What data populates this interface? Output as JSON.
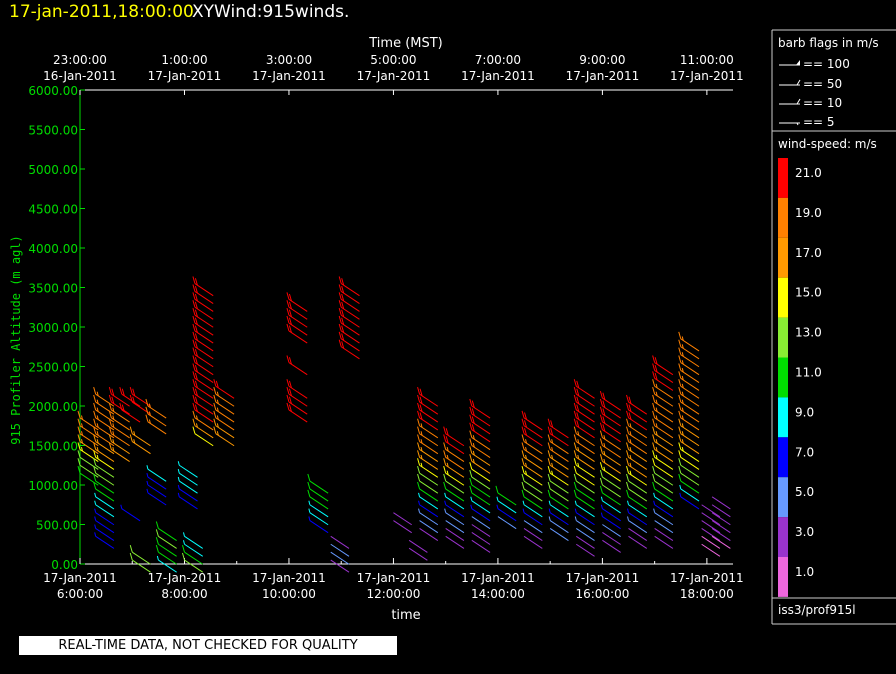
{
  "header": {
    "date_time": "17-jan-2011,18:00:00",
    "product": "XYWind:915winds."
  },
  "disclaimer": "REAL-TIME DATA, NOT CHECKED FOR QUALITY",
  "chart_data": {
    "type": "wind-barb time-height plot",
    "ylabel": "915 Profiler Altitude (m agl)",
    "xlabel": "time",
    "top_axis_title": "Time (MST)",
    "ylim": [
      0,
      6000
    ],
    "y_ticks": [
      "0.00",
      "500.00",
      "1000.00",
      "1500.00",
      "2000.00",
      "2500.00",
      "3000.00",
      "3500.00",
      "4000.00",
      "4500.00",
      "5000.00",
      "5500.00",
      "6000.00"
    ],
    "y_tick_values": [
      0,
      500,
      1000,
      1500,
      2000,
      2500,
      3000,
      3500,
      4000,
      4500,
      5000,
      5500,
      6000
    ],
    "x_range_hours": [
      6,
      18.5
    ],
    "bottom_ticks": [
      {
        "hour": 6,
        "date": "17-Jan-2011",
        "time": "6:00:00"
      },
      {
        "hour": 8,
        "date": "17-Jan-2011",
        "time": "8:00:00"
      },
      {
        "hour": 10,
        "date": "17-Jan-2011",
        "time": "10:00:00"
      },
      {
        "hour": 12,
        "date": "17-Jan-2011",
        "time": "12:00:00"
      },
      {
        "hour": 14,
        "date": "17-Jan-2011",
        "time": "14:00:00"
      },
      {
        "hour": 16,
        "date": "17-Jan-2011",
        "time": "16:00:00"
      },
      {
        "hour": 18,
        "date": "17-Jan-2011",
        "time": "18:00:00"
      }
    ],
    "top_ticks": [
      {
        "hour": 6,
        "time": "23:00:00",
        "date": "16-Jan-2011"
      },
      {
        "hour": 8,
        "time": "1:00:00",
        "date": "17-Jan-2011"
      },
      {
        "hour": 10,
        "time": "3:00:00",
        "date": "17-Jan-2011"
      },
      {
        "hour": 12,
        "time": "5:00:00",
        "date": "17-Jan-2011"
      },
      {
        "hour": 14,
        "time": "7:00:00",
        "date": "17-Jan-2011"
      },
      {
        "hour": 16,
        "time": "9:00:00",
        "date": "17-Jan-2011"
      },
      {
        "hour": 18,
        "time": "11:00:00",
        "date": "17-Jan-2011"
      }
    ],
    "barb_legend": {
      "title": "barb flags in m/s",
      "entries": [
        {
          "label": "== 100",
          "kind": "flag"
        },
        {
          "label": "== 50",
          "kind": "pennant"
        },
        {
          "label": "== 10",
          "kind": "full"
        },
        {
          "label": "== 5",
          "kind": "half"
        }
      ]
    },
    "colorbar": {
      "title": "wind-speed: m/s",
      "bands": [
        {
          "color": "#ff0000",
          "label": "21.0"
        },
        {
          "color": "#ff8000",
          "label": "19.0"
        },
        {
          "color": "#ff9900",
          "label": "17.0"
        },
        {
          "color": "#ffff00",
          "label": "15.0"
        },
        {
          "color": "#88ee33",
          "label": "13.0"
        },
        {
          "color": "#00dd00",
          "label": "11.0"
        },
        {
          "color": "#00ffff",
          "label": "9.0"
        },
        {
          "color": "#0000ff",
          "label": "7.0"
        },
        {
          "color": "#6699ff",
          "label": "5.0"
        },
        {
          "color": "#9933cc",
          "label": "3.0"
        },
        {
          "color": "#ee66dd",
          "label": "1.0"
        }
      ]
    },
    "station": "iss3/prof915l",
    "profiles": [
      {
        "hour": 6.0,
        "alts": [
          1150,
          1250,
          1350,
          1450,
          1550,
          1650,
          1750,
          1850
        ],
        "speeds": [
          10,
          12,
          13,
          15,
          17,
          18,
          19,
          19
        ]
      },
      {
        "hour": 6.3,
        "alts": [
          350,
          450,
          550,
          650,
          750,
          850,
          950,
          1050,
          1150,
          1250,
          1350,
          1450,
          1550,
          1650,
          1750,
          1850,
          1950,
          2050,
          2150
        ],
        "speeds": [
          7,
          6,
          7,
          7,
          8,
          9,
          10,
          11,
          12,
          13,
          15,
          16,
          17,
          18,
          19,
          19,
          19,
          19,
          18
        ]
      },
      {
        "hour": 6.6,
        "alts": [
          1450,
          1550,
          1650,
          1750,
          1850,
          1950,
          2050,
          2150
        ],
        "speeds": [
          17,
          17,
          18,
          18,
          19,
          19,
          20,
          21
        ]
      },
      {
        "hour": 6.8,
        "alts": [
          700,
          1950,
          2150
        ],
        "speeds": [
          7,
          21,
          21
        ]
      },
      {
        "hour": 7.0,
        "alts": [
          50,
          150,
          1550,
          1650,
          2050,
          2150
        ],
        "speeds": [
          13,
          13,
          16,
          17,
          20,
          21
        ]
      },
      {
        "hour": 7.3,
        "alts": [
          900,
          1000,
          1100,
          1200,
          1800,
          1900,
          2000
        ],
        "speeds": [
          6,
          7,
          7,
          8,
          18,
          19,
          19
        ]
      },
      {
        "hour": 7.5,
        "alts": [
          50,
          150,
          250,
          350,
          450
        ],
        "speeds": [
          9,
          10,
          11,
          12,
          11
        ]
      },
      {
        "hour": 7.9,
        "alts": [
          850,
          950,
          1050,
          1150,
          1250
        ],
        "speeds": [
          7,
          7,
          8,
          9,
          9
        ]
      },
      {
        "hour": 8.0,
        "alts": [
          50,
          150,
          250,
          350
        ],
        "speeds": [
          12,
          11,
          9,
          8
        ]
      },
      {
        "hour": 8.2,
        "alts": [
          1650,
          1750,
          1850,
          1950,
          2050,
          2150,
          2250,
          2350,
          2450,
          2550,
          2650,
          2750,
          2850,
          2950,
          3050,
          3150,
          3250,
          3350,
          3450,
          3550
        ],
        "speeds": [
          14,
          16,
          18,
          20,
          21,
          21,
          21,
          21,
          21,
          21,
          21,
          21,
          21,
          21,
          21,
          21,
          21,
          21,
          21,
          21
        ]
      },
      {
        "hour": 8.6,
        "alts": [
          1650,
          1750,
          1850,
          1950,
          2050,
          2150,
          2250
        ],
        "speeds": [
          16,
          17,
          18,
          18,
          19,
          19,
          20
        ]
      },
      {
        "hour": 10.0,
        "alts": [
          1950,
          2050,
          2150,
          2250,
          2550,
          2950,
          3050,
          3150,
          3250,
          3350
        ],
        "speeds": [
          21,
          21,
          21,
          21,
          21,
          21,
          21,
          21,
          21,
          21
        ]
      },
      {
        "hour": 10.4,
        "alts": [
          550,
          650,
          750,
          850,
          950,
          1050
        ],
        "speeds": [
          7,
          8,
          9,
          10,
          11,
          11
        ]
      },
      {
        "hour": 10.8,
        "alts": [
          50,
          150,
          250,
          350
        ],
        "speeds": [
          3,
          4,
          4,
          3
        ]
      },
      {
        "hour": 11.0,
        "alts": [
          2750,
          2850,
          2950,
          3050,
          3150,
          3250,
          3350,
          3450,
          3550
        ],
        "speeds": [
          21,
          21,
          21,
          21,
          21,
          21,
          21,
          21,
          21
        ]
      },
      {
        "hour": 12.0,
        "alts": [
          550,
          650
        ],
        "speeds": [
          3,
          3
        ]
      },
      {
        "hour": 12.3,
        "alts": [
          200,
          300
        ],
        "speeds": [
          2,
          3
        ]
      },
      {
        "hour": 12.5,
        "alts": [
          450,
          550,
          650,
          750,
          850,
          950,
          1050,
          1150,
          1250,
          1350,
          1450,
          1550,
          1650,
          1750,
          1850,
          1950,
          2050,
          2150
        ],
        "speeds": [
          3,
          4,
          5,
          7,
          9,
          11,
          12,
          13,
          15,
          16,
          17,
          18,
          19,
          19,
          20,
          21,
          21,
          21
        ]
      },
      {
        "hour": 13.0,
        "alts": [
          350,
          450,
          550,
          650,
          750,
          850,
          950,
          1050,
          1150,
          1250,
          1350,
          1450,
          1550,
          1650
        ],
        "speeds": [
          2,
          3,
          4,
          5,
          7,
          9,
          11,
          13,
          15,
          17,
          18,
          19,
          20,
          21
        ]
      },
      {
        "hour": 13.5,
        "alts": [
          300,
          400,
          500,
          600,
          700,
          800,
          900,
          1000,
          1100,
          1200,
          1300,
          1400,
          1500,
          1600,
          1700,
          1800,
          1900,
          2000
        ],
        "speeds": [
          2,
          3,
          3,
          4,
          6,
          8,
          10,
          11,
          12,
          14,
          16,
          17,
          18,
          19,
          20,
          21,
          21,
          21
        ]
      },
      {
        "hour": 14.0,
        "alts": [
          600,
          700,
          800,
          900
        ],
        "speeds": [
          4,
          6,
          9,
          11
        ]
      },
      {
        "hour": 14.5,
        "alts": [
          350,
          450,
          550,
          650,
          750,
          850,
          950,
          1050,
          1150,
          1250,
          1350,
          1450,
          1550,
          1650,
          1750,
          1850
        ],
        "speeds": [
          2,
          3,
          4,
          6,
          8,
          10,
          12,
          13,
          15,
          16,
          17,
          18,
          19,
          20,
          21,
          21
        ]
      },
      {
        "hour": 15.0,
        "alts": [
          450,
          550,
          650,
          750,
          850,
          950,
          1050,
          1150,
          1250,
          1350,
          1450,
          1550,
          1650,
          1750
        ],
        "speeds": [
          4,
          5,
          6,
          8,
          10,
          12,
          13,
          15,
          16,
          17,
          18,
          19,
          20,
          21
        ]
      },
      {
        "hour": 15.5,
        "alts": [
          250,
          350,
          450,
          550,
          650,
          750,
          850,
          950,
          1050,
          1150,
          1250,
          1350,
          1450,
          1550,
          1650,
          1750,
          1850,
          1950,
          2050,
          2150,
          2250
        ],
        "speeds": [
          2,
          3,
          4,
          5,
          6,
          8,
          10,
          11,
          12,
          14,
          15,
          16,
          17,
          18,
          19,
          20,
          21,
          21,
          21,
          21,
          21
        ]
      },
      {
        "hour": 16.0,
        "alts": [
          300,
          400,
          500,
          600,
          700,
          800,
          900,
          1000,
          1100,
          1200,
          1300,
          1400,
          1500,
          1600,
          1700,
          1800,
          1900,
          2000,
          2100
        ],
        "speeds": [
          2,
          3,
          4,
          6,
          7,
          9,
          11,
          12,
          13,
          15,
          16,
          17,
          18,
          19,
          20,
          21,
          21,
          21,
          21
        ]
      },
      {
        "hour": 16.5,
        "alts": [
          350,
          450,
          550,
          650,
          750,
          850,
          950,
          1050,
          1150,
          1250,
          1350,
          1450,
          1550,
          1650,
          1750,
          1850,
          1950,
          2050
        ],
        "speeds": [
          2,
          3,
          5,
          6,
          8,
          10,
          12,
          13,
          15,
          16,
          17,
          17,
          18,
          19,
          19,
          20,
          20,
          21
        ]
      },
      {
        "hour": 17.0,
        "alts": [
          350,
          450,
          550,
          650,
          750,
          850,
          950,
          1050,
          1150,
          1250,
          1350,
          1450,
          1550,
          1650,
          1750,
          1850,
          1950,
          2050,
          2150,
          2250,
          2350,
          2450,
          2550
        ],
        "speeds": [
          2,
          3,
          4,
          5,
          7,
          9,
          11,
          12,
          13,
          14,
          15,
          16,
          17,
          17,
          18,
          18,
          19,
          19,
          19,
          19,
          20,
          20,
          20
        ]
      },
      {
        "hour": 17.5,
        "alts": [
          850,
          950,
          1050,
          1150,
          1250,
          1350,
          1450,
          1550,
          1650,
          1750,
          1850,
          1950,
          2050,
          2150,
          2250,
          2350,
          2450,
          2550,
          2650,
          2750,
          2850
        ],
        "speeds": [
          7,
          9,
          11,
          12,
          13,
          14,
          15,
          16,
          17,
          17,
          18,
          18,
          18,
          19,
          19,
          19,
          19,
          19,
          19,
          19,
          19
        ]
      },
      {
        "hour": 17.9,
        "alts": [
          250,
          350,
          450,
          550,
          650,
          750
        ],
        "speeds": [
          1,
          1,
          2,
          3,
          3,
          2
        ]
      },
      {
        "hour": 18.1,
        "alts": [
          350,
          450,
          550,
          650,
          750,
          850
        ],
        "speeds": [
          1,
          2,
          3,
          3,
          2,
          2
        ]
      }
    ]
  }
}
